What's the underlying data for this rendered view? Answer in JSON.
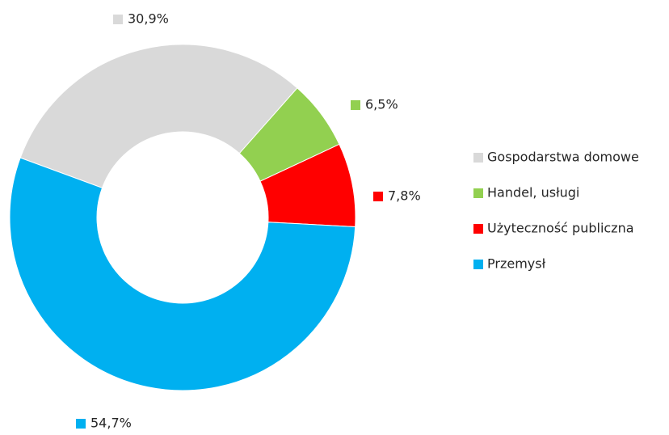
{
  "chart_data": {
    "type": "donut",
    "categories": [
      "Gospodarstwa domowe",
      "Handel, usługi",
      "Użyteczność publiczna",
      "Przemysł"
    ],
    "values": [
      30.9,
      6.5,
      7.8,
      54.7
    ],
    "value_labels": [
      "30,9%",
      "6,5%",
      "7,8%",
      "54,7%"
    ],
    "colors": [
      "#d9d9d9",
      "#92d050",
      "#ff0000",
      "#00b0f0"
    ],
    "legend": "right"
  }
}
